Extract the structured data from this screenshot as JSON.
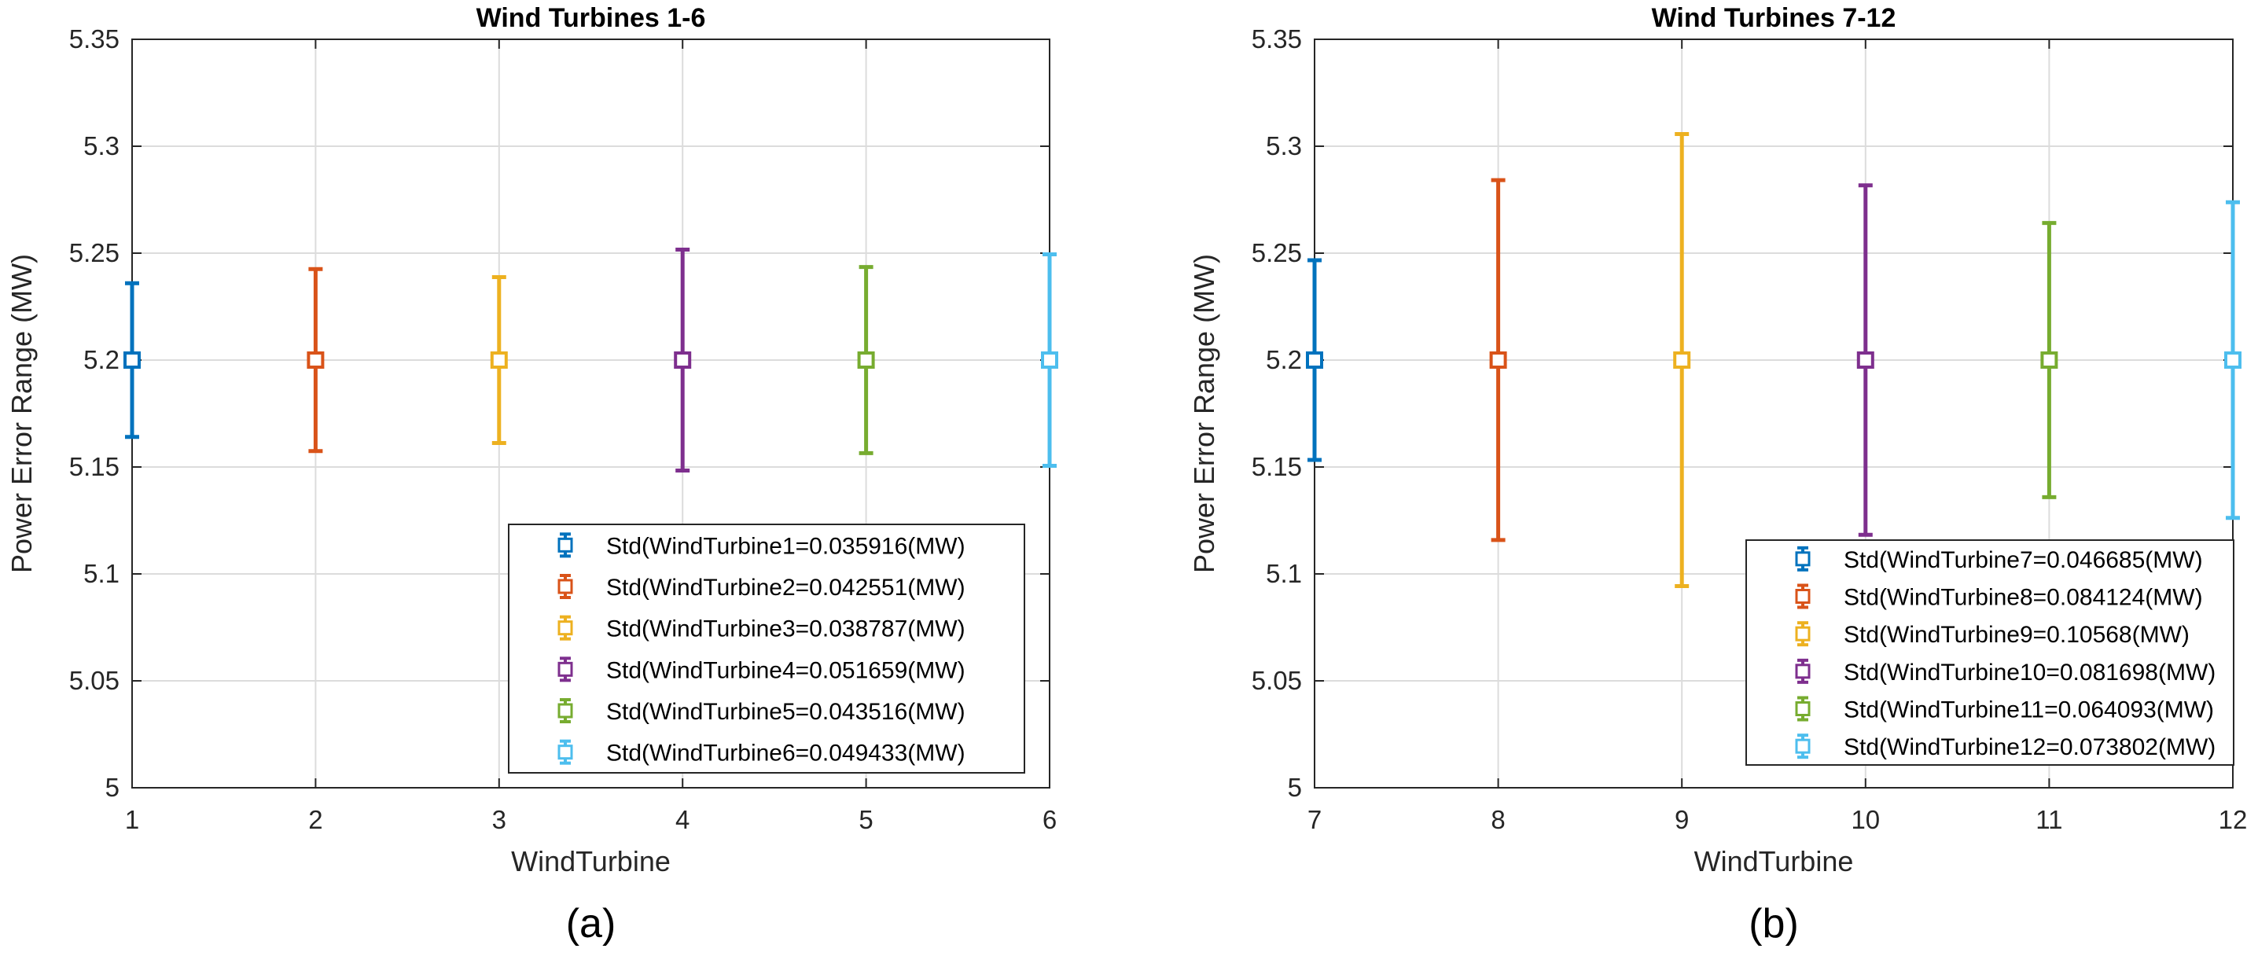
{
  "chart_data": [
    {
      "type": "errorbar",
      "panel_label": "(a)",
      "title": "Wind Turbines 1-6",
      "xlabel": "WindTurbine",
      "ylabel": "Power Error Range (MW)",
      "xlim": [
        1,
        6
      ],
      "ylim": [
        5,
        5.35
      ],
      "grid": true,
      "legend_position": "bottom-right",
      "x_ticks": [
        "1",
        "2",
        "3",
        "4",
        "5",
        "6"
      ],
      "y_ticks": [
        "5",
        "5.05",
        "5.1",
        "5.15",
        "5.2",
        "5.25",
        "5.3",
        "5.35"
      ],
      "series": [
        {
          "name": "Std(WindTurbine1=0.035916(MW)",
          "x": 1,
          "y": 5.2,
          "std": 0.035916,
          "color": "#0072BD"
        },
        {
          "name": "Std(WindTurbine2=0.042551(MW)",
          "x": 2,
          "y": 5.2,
          "std": 0.042551,
          "color": "#D95319"
        },
        {
          "name": "Std(WindTurbine3=0.038787(MW)",
          "x": 3,
          "y": 5.2,
          "std": 0.038787,
          "color": "#EDB120"
        },
        {
          "name": "Std(WindTurbine4=0.051659(MW)",
          "x": 4,
          "y": 5.2,
          "std": 0.051659,
          "color": "#7E2F8E"
        },
        {
          "name": "Std(WindTurbine5=0.043516(MW)",
          "x": 5,
          "y": 5.2,
          "std": 0.043516,
          "color": "#77AC30"
        },
        {
          "name": "Std(WindTurbine6=0.049433(MW)",
          "x": 6,
          "y": 5.2,
          "std": 0.049433,
          "color": "#4DBEEE"
        }
      ]
    },
    {
      "type": "errorbar",
      "panel_label": "(b)",
      "title": "Wind Turbines 7-12",
      "xlabel": "WindTurbine",
      "ylabel": "Power Error Range (MW)",
      "xlim": [
        7,
        12
      ],
      "ylim": [
        5,
        5.35
      ],
      "grid": true,
      "legend_position": "bottom-right",
      "x_ticks": [
        "7",
        "8",
        "9",
        "10",
        "11",
        "12"
      ],
      "y_ticks": [
        "5",
        "5.05",
        "5.1",
        "5.15",
        "5.2",
        "5.25",
        "5.3",
        "5.35"
      ],
      "series": [
        {
          "name": "Std(WindTurbine7=0.046685(MW)",
          "x": 7,
          "y": 5.2,
          "std": 0.046685,
          "color": "#0072BD"
        },
        {
          "name": "Std(WindTurbine8=0.084124(MW)",
          "x": 8,
          "y": 5.2,
          "std": 0.084124,
          "color": "#D95319"
        },
        {
          "name": "Std(WindTurbine9=0.10568(MW)",
          "x": 9,
          "y": 5.2,
          "std": 0.10568,
          "color": "#EDB120"
        },
        {
          "name": "Std(WindTurbine10=0.081698(MW)",
          "x": 10,
          "y": 5.2,
          "std": 0.081698,
          "color": "#7E2F8E"
        },
        {
          "name": "Std(WindTurbine11=0.064093(MW)",
          "x": 11,
          "y": 5.2,
          "std": 0.064093,
          "color": "#77AC30"
        },
        {
          "name": "Std(WindTurbine12=0.073802(MW)",
          "x": 12,
          "y": 5.2,
          "std": 0.073802,
          "color": "#4DBEEE"
        }
      ]
    }
  ]
}
